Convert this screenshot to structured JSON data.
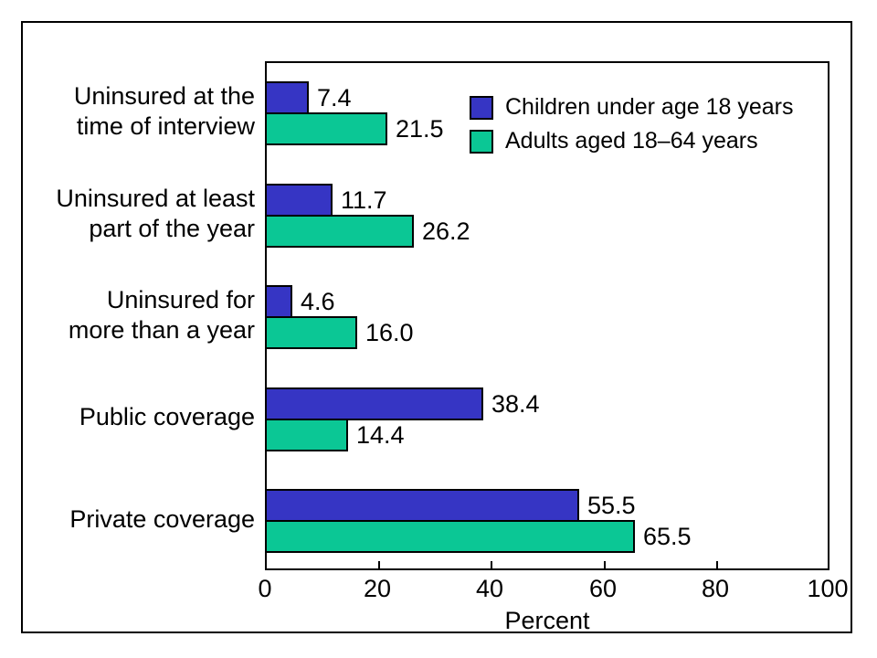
{
  "frame": {
    "background": "#ffffff",
    "border_color": "#000000"
  },
  "chart_data": {
    "type": "bar",
    "orientation": "horizontal",
    "title": "",
    "xlabel": "Percent",
    "ylabel": "",
    "xlim": [
      0,
      100
    ],
    "x_ticks": [
      0,
      20,
      40,
      60,
      80,
      100
    ],
    "x_tick_labels": [
      "0",
      "20",
      "40",
      "60",
      "80",
      "100"
    ],
    "grid": false,
    "legend_position": "top-right-inside",
    "bar_border_color": "#000000",
    "categories": [
      {
        "lines": [
          "Uninsured at the",
          "time of interview"
        ]
      },
      {
        "lines": [
          "Uninsured at least",
          "part of the year"
        ]
      },
      {
        "lines": [
          "Uninsured for",
          "more than a year"
        ]
      },
      {
        "lines": [
          "Public coverage"
        ]
      },
      {
        "lines": [
          "Private coverage"
        ]
      }
    ],
    "series": [
      {
        "name": "Children under age 18 years",
        "color": "#3635c4",
        "values": [
          7.4,
          11.7,
          4.6,
          38.4,
          55.5
        ],
        "labels": [
          "7.4",
          "11.7",
          "4.6",
          "38.4",
          "55.5"
        ]
      },
      {
        "name": "Adults aged 18–64 years",
        "color": "#0bc795",
        "values": [
          21.5,
          26.2,
          16.0,
          14.4,
          65.5
        ],
        "labels": [
          "21.5",
          "26.2",
          "16.0",
          "14.4",
          "65.5"
        ]
      }
    ]
  }
}
